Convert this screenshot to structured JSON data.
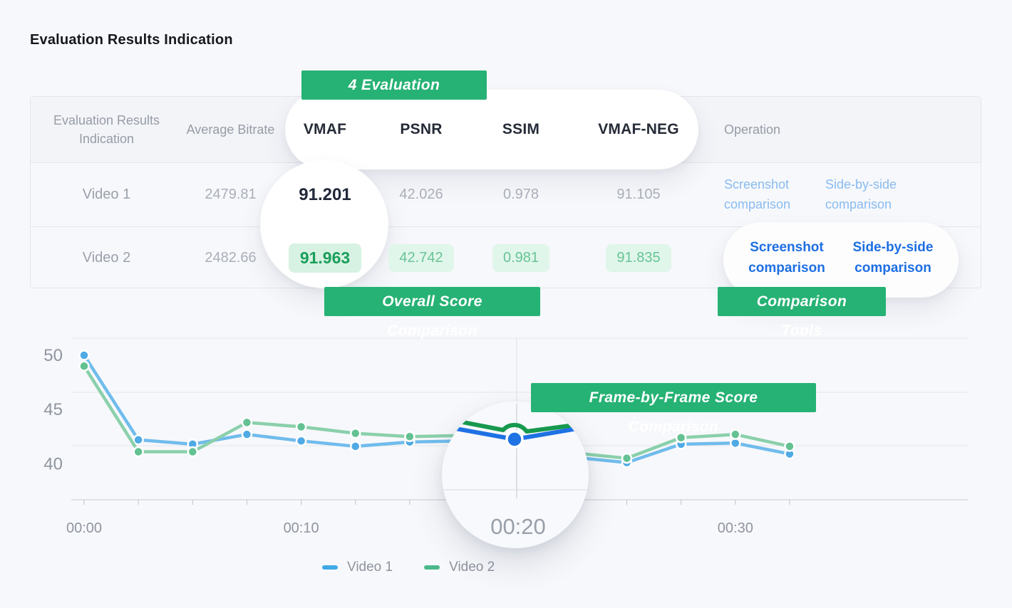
{
  "page": {
    "title": "Evaluation Results Indication",
    "background": "#f7f8fb"
  },
  "badges": {
    "color": "#26b274",
    "methods": "4 Evaluation Methods",
    "overall": "Overall Score Comparison",
    "tools": "Comparison Tools",
    "frame": "Frame-by-Frame Score Comparison"
  },
  "table": {
    "headers": {
      "name": "Evaluation Results Indication",
      "bitrate": "Average Bitrate",
      "vmaf": "VMAF",
      "psnr": "PSNR",
      "ssim": "SSIM",
      "vmaf_neg": "VMAF-NEG",
      "operation": "Operation"
    },
    "rows": [
      {
        "name": "Video 1",
        "bitrate": "2479.81",
        "vmaf": "91.201",
        "psnr": "42.026",
        "ssim": "0.978",
        "vmaf_neg": "91.105",
        "operations": [
          "Screenshot comparison",
          "Side-by-side comparison"
        ]
      },
      {
        "name": "Video 2",
        "bitrate": "2482.66",
        "vmaf": "91.963",
        "psnr": "42.742",
        "ssim": "0.981",
        "vmaf_neg": "91.835",
        "operations": [
          "Screenshot comparison",
          "Side-by-side comparison"
        ]
      }
    ]
  },
  "chart_data": {
    "type": "line",
    "title": "",
    "xlabel": "",
    "ylabel": "",
    "x_seconds": [
      0,
      2.5,
      5,
      7.5,
      10,
      12.5,
      15,
      17.5,
      20,
      22.5,
      25,
      27.5,
      30,
      32.5
    ],
    "x_tick_labels": [
      "00:00",
      "00:10",
      "00:20",
      "00:30"
    ],
    "x_tick_indices": [
      0,
      4,
      8,
      12
    ],
    "yticks": [
      50,
      45,
      40
    ],
    "ylim": [
      37,
      51.5
    ],
    "grid": true,
    "legend_position": "bottom",
    "magnifier": {
      "label": "00:20",
      "x_index": 8
    },
    "series": [
      {
        "name": "Video 1",
        "line_color": "#70bcec",
        "dot_color": "#4faae5",
        "legend_color": "#41a9e6",
        "loupe_color": "#1f72e3",
        "values": [
          50.0,
          42.2,
          41.8,
          42.7,
          42.1,
          41.6,
          42.0,
          42.1,
          41.2,
          40.6,
          40.1,
          41.8,
          41.9,
          40.9
        ]
      },
      {
        "name": "Video 2",
        "line_color": "#8ad0ab",
        "dot_color": "#63c192",
        "legend_color": "#4bb98a",
        "loupe_color": "#16994e",
        "values": [
          49.0,
          41.1,
          41.1,
          43.8,
          43.4,
          42.8,
          42.5,
          42.6,
          41.7,
          41.0,
          40.5,
          42.4,
          42.7,
          41.6
        ]
      }
    ]
  }
}
